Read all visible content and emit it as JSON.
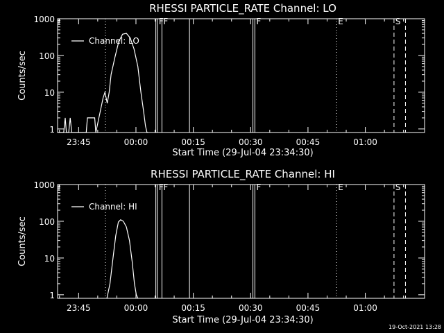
{
  "footer_timestamp": "19-Oct-2021 13:28",
  "chart_data": [
    {
      "type": "line",
      "title": "RHESSI PARTICLE_RATE Channel: LO",
      "xlabel": "Start Time (29-Jul-04 23:34:30)",
      "ylabel": "Counts/sec",
      "yscale": "log",
      "ylim": [
        0.8,
        1000
      ],
      "xlim_minutes": [
        -20.5,
        75.5
      ],
      "xticks": [
        {
          "m": -15,
          "label": "23:45"
        },
        {
          "m": 0,
          "label": "00:00"
        },
        {
          "m": 15,
          "label": "00:15"
        },
        {
          "m": 30,
          "label": "00:30"
        },
        {
          "m": 45,
          "label": "00:45"
        },
        {
          "m": 60,
          "label": "01:00"
        }
      ],
      "yticks": [
        {
          "v": 1,
          "label": "1"
        },
        {
          "v": 10,
          "label": "10"
        },
        {
          "v": 100,
          "label": "100"
        },
        {
          "v": 1000,
          "label": "1000"
        }
      ],
      "legend": {
        "label": "Channel: LO",
        "position": "top-left"
      },
      "series": [
        {
          "name": "Channel: LO",
          "x": [
            -20.5,
            -18.9,
            -18.5,
            -18.2,
            -17.6,
            -17.2,
            -16.8,
            -13.0,
            -12.7,
            -10.8,
            -10.5,
            -8.6,
            -8.1,
            -7.5,
            -7.0,
            -6.5,
            -5.5,
            -4.5,
            -3.5,
            -2.5,
            -1.5,
            -0.5,
            0.5,
            1.3,
            2.0,
            2.5,
            2.9,
            3.2
          ],
          "y": [
            0.8,
            0.8,
            2,
            0.8,
            0.8,
            2,
            0.8,
            0.8,
            2,
            2,
            0.8,
            7,
            10,
            5,
            10,
            30,
            90,
            240,
            380,
            400,
            300,
            150,
            50,
            10,
            3,
            1.2,
            0.8,
            0.8
          ]
        }
      ],
      "markers": [
        {
          "m": -8.0,
          "style": "dotted",
          "label": ""
        },
        {
          "m": 5.2,
          "style": "solid",
          "label": ""
        },
        {
          "m": 5.6,
          "style": "solid",
          "label": "F"
        },
        {
          "m": 6.8,
          "style": "solid",
          "label": "F"
        },
        {
          "m": 14.0,
          "style": "solid",
          "label": ""
        },
        {
          "m": 30.6,
          "style": "solid",
          "label": ""
        },
        {
          "m": 31.1,
          "style": "solid",
          "label": "F"
        },
        {
          "m": 52.5,
          "style": "dotted",
          "label": "E"
        },
        {
          "m": 67.5,
          "style": "dashed",
          "label": "S"
        },
        {
          "m": 70.5,
          "style": "dashed",
          "label": ""
        }
      ]
    },
    {
      "type": "line",
      "title": "RHESSI PARTICLE_RATE Channel: HI",
      "xlabel": "Start Time (29-Jul-04 23:34:30)",
      "ylabel": "Counts/sec",
      "yscale": "log",
      "ylim": [
        0.8,
        1000
      ],
      "xlim_minutes": [
        -20.5,
        75.5
      ],
      "xticks": [
        {
          "m": -15,
          "label": "23:45"
        },
        {
          "m": 0,
          "label": "00:00"
        },
        {
          "m": 15,
          "label": "00:15"
        },
        {
          "m": 30,
          "label": "00:30"
        },
        {
          "m": 45,
          "label": "00:45"
        },
        {
          "m": 60,
          "label": "01:00"
        }
      ],
      "yticks": [
        {
          "v": 1,
          "label": "1"
        },
        {
          "v": 10,
          "label": "10"
        },
        {
          "v": 100,
          "label": "100"
        },
        {
          "v": 1000,
          "label": "1000"
        }
      ],
      "legend": {
        "label": "Channel: HI",
        "position": "top-left"
      },
      "series": [
        {
          "name": "Channel: HI",
          "x": [
            -7.6,
            -6.8,
            -6.0,
            -5.3,
            -4.6,
            -4.0,
            -3.3,
            -2.5,
            -1.7,
            -1.0,
            -0.4,
            0.1,
            0.5
          ],
          "y": [
            0.8,
            2,
            10,
            40,
            95,
            110,
            100,
            70,
            30,
            8,
            2,
            1,
            0.8
          ]
        }
      ],
      "markers": [
        {
          "m": -8.0,
          "style": "dotted",
          "label": ""
        },
        {
          "m": 5.2,
          "style": "solid",
          "label": ""
        },
        {
          "m": 5.6,
          "style": "solid",
          "label": "F"
        },
        {
          "m": 6.8,
          "style": "solid",
          "label": "F"
        },
        {
          "m": 14.0,
          "style": "solid",
          "label": ""
        },
        {
          "m": 30.6,
          "style": "solid",
          "label": ""
        },
        {
          "m": 31.1,
          "style": "solid",
          "label": "F"
        },
        {
          "m": 52.5,
          "style": "dotted",
          "label": "E"
        },
        {
          "m": 67.5,
          "style": "dashed",
          "label": "S"
        },
        {
          "m": 70.5,
          "style": "dashed",
          "label": ""
        }
      ]
    }
  ]
}
